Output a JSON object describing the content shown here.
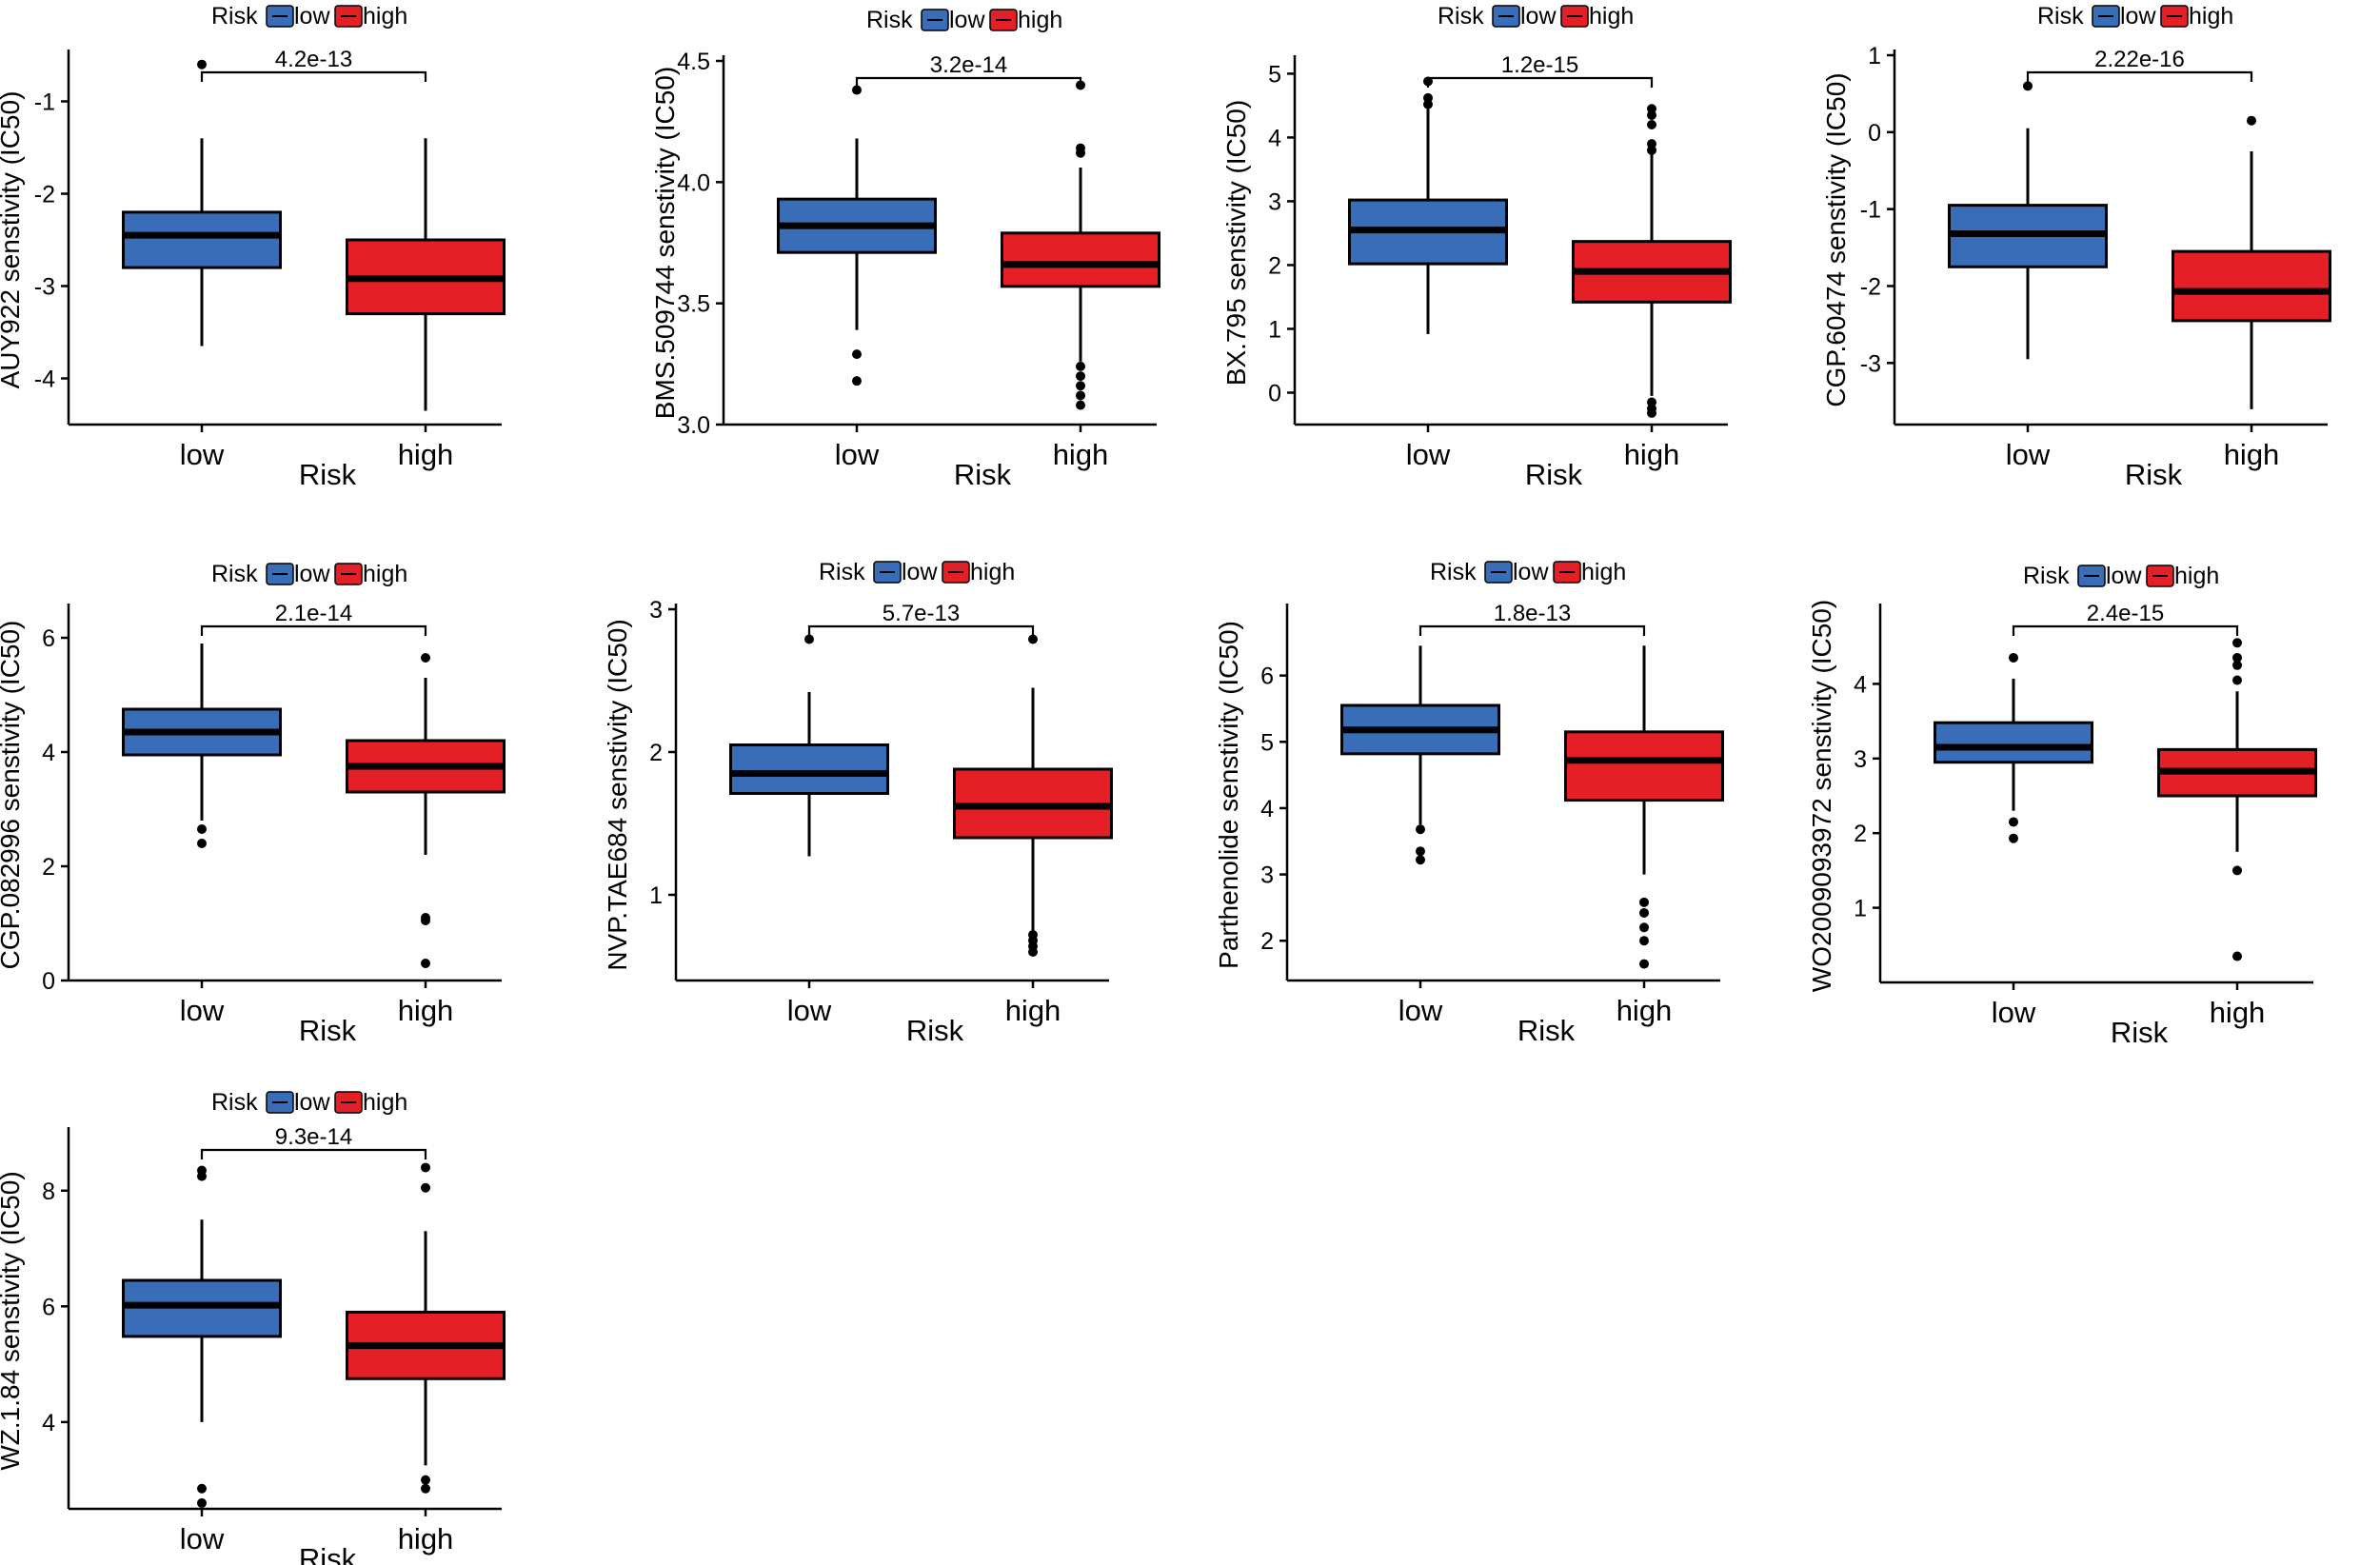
{
  "legend_title": "Risk",
  "x_title": "Risk",
  "groups": [
    "low",
    "high"
  ],
  "colors": {
    "low": "#3A6DB8",
    "high": "#E41F26",
    "line": "#000000"
  },
  "chart_data": [
    {
      "type": "box",
      "ylabel": "AUY922 senstivity (IC50)",
      "ylim": [
        -4.5,
        -0.5
      ],
      "yticks": [
        -4,
        -3,
        -2,
        -1
      ],
      "pvalue": "4.2e-13",
      "boxes": [
        {
          "group": "low",
          "q1": -2.8,
          "median": -2.45,
          "q3": -2.2,
          "whisker_low": -3.65,
          "whisker_high": -1.4,
          "outliers": [
            -0.6
          ]
        },
        {
          "group": "high",
          "q1": -3.3,
          "median": -2.92,
          "q3": -2.5,
          "whisker_low": -4.35,
          "whisker_high": -1.4,
          "outliers": []
        }
      ]
    },
    {
      "type": "box",
      "ylabel": "BMS.509744 senstivity (IC50)",
      "ylim": [
        3.0,
        4.5
      ],
      "yticks": [
        3.0,
        3.5,
        4.0,
        4.5
      ],
      "ytick_labels": [
        "3.0",
        "3.5",
        "4.0",
        "4.5"
      ],
      "pvalue": "3.2e-14",
      "boxes": [
        {
          "group": "low",
          "q1": 3.71,
          "median": 3.82,
          "q3": 3.93,
          "whisker_low": 3.39,
          "whisker_high": 4.18,
          "outliers": [
            4.38,
            3.29,
            3.18
          ]
        },
        {
          "group": "high",
          "q1": 3.57,
          "median": 3.66,
          "q3": 3.79,
          "whisker_low": 3.26,
          "whisker_high": 4.06,
          "outliers": [
            4.4,
            4.14,
            4.12,
            3.24,
            3.2,
            3.16,
            3.12,
            3.08
          ]
        }
      ]
    },
    {
      "type": "box",
      "ylabel": "BX.795 senstivity (IC50)",
      "ylim": [
        -0.5,
        5.2
      ],
      "yticks": [
        0,
        1,
        2,
        3,
        4,
        5
      ],
      "pvalue": "1.2e-15",
      "boxes": [
        {
          "group": "low",
          "q1": 2.02,
          "median": 2.55,
          "q3": 3.02,
          "whisker_low": 0.92,
          "whisker_high": 4.45,
          "outliers": [
            4.88,
            4.62,
            4.52
          ]
        },
        {
          "group": "high",
          "q1": 1.42,
          "median": 1.9,
          "q3": 2.37,
          "whisker_low": -0.05,
          "whisker_high": 3.75,
          "outliers": [
            4.45,
            4.35,
            4.2,
            3.9,
            3.8,
            -0.15,
            -0.25,
            -0.32
          ]
        }
      ]
    },
    {
      "type": "box",
      "ylabel": "CGP.60474 senstivity (IC50)",
      "ylim": [
        -3.8,
        1.0
      ],
      "yticks": [
        -3,
        -2,
        -1,
        0,
        1
      ],
      "pvalue": "2.22e-16",
      "boxes": [
        {
          "group": "low",
          "q1": -1.75,
          "median": -1.32,
          "q3": -0.95,
          "whisker_low": -2.95,
          "whisker_high": 0.05,
          "outliers": [
            0.6
          ]
        },
        {
          "group": "high",
          "q1": -2.45,
          "median": -2.07,
          "q3": -1.55,
          "whisker_low": -3.6,
          "whisker_high": -0.25,
          "outliers": [
            0.15
          ]
        }
      ]
    },
    {
      "type": "box",
      "ylabel": "CGP.082996 senstivity (IC50)",
      "ylim": [
        0,
        6.5
      ],
      "yticks": [
        0,
        2,
        4,
        6
      ],
      "pvalue": "2.1e-14",
      "boxes": [
        {
          "group": "low",
          "q1": 3.95,
          "median": 4.35,
          "q3": 4.75,
          "whisker_low": 2.8,
          "whisker_high": 5.9,
          "outliers": [
            2.65,
            2.4
          ]
        },
        {
          "group": "high",
          "q1": 3.3,
          "median": 3.75,
          "q3": 4.2,
          "whisker_low": 2.2,
          "whisker_high": 5.3,
          "outliers": [
            5.65,
            1.1,
            1.05,
            0.3
          ]
        }
      ]
    },
    {
      "type": "box",
      "ylabel": "NVP.TAE684 senstivity (IC50)",
      "ylim": [
        0.4,
        3.0
      ],
      "yticks": [
        1,
        2,
        3
      ],
      "pvalue": "5.7e-13",
      "boxes": [
        {
          "group": "low",
          "q1": 1.71,
          "median": 1.85,
          "q3": 2.05,
          "whisker_low": 1.27,
          "whisker_high": 2.42,
          "outliers": [
            2.79
          ]
        },
        {
          "group": "high",
          "q1": 1.4,
          "median": 1.62,
          "q3": 1.88,
          "whisker_low": 0.75,
          "whisker_high": 2.45,
          "outliers": [
            2.79,
            0.72,
            0.68,
            0.64,
            0.6
          ]
        }
      ]
    },
    {
      "type": "box",
      "ylabel": "Parthenolide senstivity (IC50)",
      "ylim": [
        1.4,
        7.0
      ],
      "yticks": [
        2,
        3,
        4,
        5,
        6
      ],
      "pvalue": "1.8e-13",
      "boxes": [
        {
          "group": "low",
          "q1": 4.82,
          "median": 5.18,
          "q3": 5.55,
          "whisker_low": 3.75,
          "whisker_high": 6.45,
          "outliers": [
            3.68,
            3.35,
            3.22
          ]
        },
        {
          "group": "high",
          "q1": 4.12,
          "median": 4.72,
          "q3": 5.15,
          "whisker_low": 3.0,
          "whisker_high": 6.45,
          "outliers": [
            2.58,
            2.42,
            2.2,
            2.0,
            1.65
          ]
        }
      ]
    },
    {
      "type": "box",
      "ylabel": "WO2009093972 senstivity (IC50)",
      "ylim": [
        0,
        5
      ],
      "yticks": [
        1,
        2,
        3,
        4
      ],
      "pvalue": "2.4e-15",
      "boxes": [
        {
          "group": "low",
          "q1": 2.95,
          "median": 3.15,
          "q3": 3.48,
          "whisker_low": 2.3,
          "whisker_high": 4.07,
          "outliers": [
            4.35,
            2.15,
            1.93
          ]
        },
        {
          "group": "high",
          "q1": 2.5,
          "median": 2.83,
          "q3": 3.12,
          "whisker_low": 1.75,
          "whisker_high": 3.9,
          "outliers": [
            4.55,
            4.35,
            4.25,
            4.05,
            1.5,
            0.35
          ]
        }
      ]
    },
    {
      "type": "box",
      "ylabel": "WZ.1.84 senstivity (IC50)",
      "ylim": [
        2.5,
        9.0
      ],
      "yticks": [
        4,
        6,
        8
      ],
      "pvalue": "9.3e-14",
      "boxes": [
        {
          "group": "low",
          "q1": 5.48,
          "median": 6.02,
          "q3": 6.45,
          "whisker_low": 4.0,
          "whisker_high": 7.5,
          "outliers": [
            8.35,
            8.25,
            2.85,
            2.6
          ]
        },
        {
          "group": "high",
          "q1": 4.75,
          "median": 5.32,
          "q3": 5.9,
          "whisker_low": 3.25,
          "whisker_high": 7.3,
          "outliers": [
            8.4,
            8.05,
            3.0,
            2.85
          ]
        }
      ]
    }
  ]
}
